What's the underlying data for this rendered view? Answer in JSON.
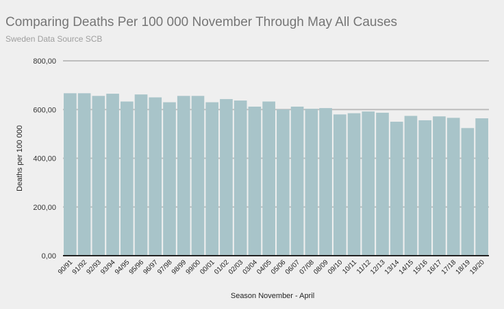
{
  "chart_data": {
    "type": "bar",
    "title": "Comparing Deaths Per 100 000 November Through May All Causes",
    "subtitle": "Sweden Data Source SCB",
    "xlabel": "Season November - April",
    "ylabel": "Deaths per 100 000",
    "ylim": [
      0,
      800
    ],
    "yticks": [
      "0,00",
      "200,00",
      "400,00",
      "600,00",
      "800,00"
    ],
    "grid": true,
    "bar_color": "#a8c4c9",
    "categories": [
      "90/91",
      "91/92",
      "92/93",
      "93/94",
      "94/95",
      "95/96",
      "96/97",
      "97/98",
      "98/99",
      "99/00",
      "00/01",
      "01/02",
      "02/03",
      "03/04",
      "04/05",
      "05/06",
      "06/07",
      "07/08",
      "08/09",
      "09/10",
      "10/11",
      "11/12",
      "12/13",
      "13/14",
      "14/15",
      "15/16",
      "16/17",
      "17/18",
      "18/19",
      "19/20"
    ],
    "values": [
      667,
      667,
      656,
      665,
      633,
      662,
      650,
      630,
      656,
      656,
      630,
      643,
      637,
      612,
      633,
      601,
      612,
      603,
      606,
      580,
      585,
      592,
      587,
      550,
      574,
      556,
      572,
      566,
      524,
      564
    ]
  }
}
